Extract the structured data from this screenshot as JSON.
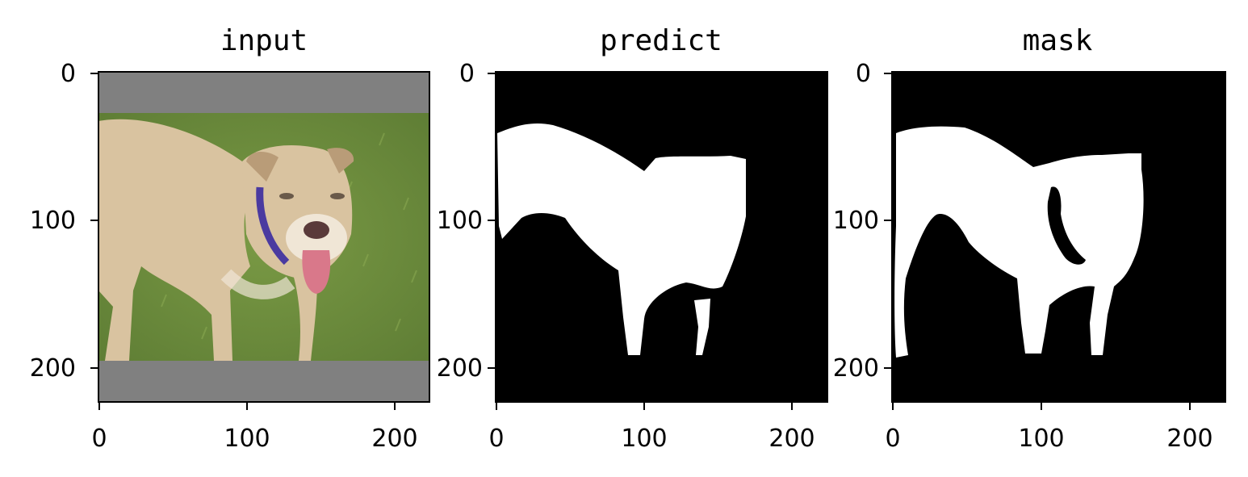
{
  "figure": {
    "panels": [
      {
        "title": "input",
        "xticks": [
          "0",
          "100",
          "200"
        ],
        "yticks": [
          "0",
          "100",
          "200"
        ],
        "xlim": [
          0,
          224
        ],
        "ylim": [
          224,
          0
        ],
        "content": "photo of a cream-colored dog with purple collar and tongue out, standing on green grass, with gray letterbox padding above and below"
      },
      {
        "title": "predict",
        "xticks": [
          "0",
          "100",
          "200"
        ],
        "yticks": [
          "0",
          "100",
          "200"
        ],
        "xlim": [
          0,
          224
        ],
        "ylim": [
          224,
          0
        ],
        "content": "binary segmentation prediction: white dog silhouette on black background"
      },
      {
        "title": "mask",
        "xticks": [
          "0",
          "100",
          "200"
        ],
        "yticks": [
          "0",
          "100",
          "200"
        ],
        "xlim": [
          0,
          224
        ],
        "ylim": [
          224,
          0
        ],
        "content": "ground-truth binary mask: white dog silhouette on black background"
      }
    ],
    "colors": {
      "padding_gray": "#808080",
      "grass_green": "#6f8f3e",
      "dog_cream": "#d9c3a0",
      "mask_white": "#ffffff",
      "mask_black": "#000000",
      "collar_purple": "#4a3aa0",
      "tongue_pink": "#d9788a"
    }
  }
}
